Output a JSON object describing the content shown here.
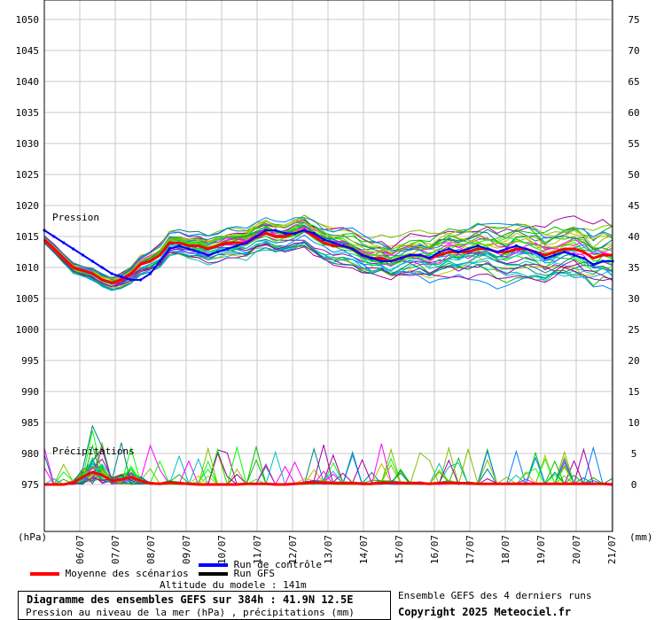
{
  "chart_data": {
    "type": "line",
    "title": "Diagramme des ensembles GEFS sur 384h : 41.9N 12.5E",
    "subtitle": "Pression au niveau de la mer (hPa) , précipitations (mm)",
    "left_axis": {
      "label": "(hPa)",
      "ticks": [
        1050,
        1045,
        1040,
        1035,
        1030,
        1025,
        1020,
        1015,
        1010,
        1005,
        1000,
        995,
        990,
        985,
        980,
        975
      ],
      "ylim": [
        967,
        1053
      ]
    },
    "right_axis": {
      "label": "(mm)",
      "ticks": [
        75,
        70,
        65,
        60,
        55,
        50,
        45,
        40,
        35,
        30,
        25,
        20,
        15,
        10,
        5,
        0
      ],
      "ylim": [
        0,
        75
      ]
    },
    "x_ticks": [
      "06/07",
      "07/07",
      "08/07",
      "09/07",
      "10/07",
      "11/07",
      "12/07",
      "13/07",
      "14/07",
      "15/07",
      "16/07",
      "17/07",
      "18/07",
      "19/07",
      "20/07",
      "21/07"
    ],
    "grid": true,
    "labels": {
      "pressure": "Pression",
      "precip": "Précipitations"
    },
    "series": [
      {
        "name": "Moyenne des scénarios",
        "color": "#ff0000",
        "kind": "pressure",
        "values": [
          1014.5,
          1013,
          1011.5,
          1010,
          1009.5,
          1009,
          1008,
          1007.5,
          1008,
          1009,
          1010.5,
          1011,
          1012,
          1014,
          1014,
          1013.5,
          1013.5,
          1013,
          1013.5,
          1014,
          1014,
          1014,
          1015,
          1015.5,
          1015,
          1015,
          1015.5,
          1016,
          1015,
          1014,
          1013.5,
          1013.5,
          1013,
          1012,
          1011.5,
          1011.5,
          1011,
          1011.5,
          1012,
          1012,
          1011.5,
          1012,
          1012.5,
          1012.5,
          1012.5,
          1013,
          1013,
          1012.5,
          1012.5,
          1013,
          1013,
          1012.5,
          1012,
          1012.5,
          1013,
          1013,
          1012.5,
          1011.5,
          1012,
          1012
        ]
      },
      {
        "name": "Run de contrôle",
        "color": "#0000ff",
        "kind": "pressure",
        "values": [
          1016,
          1015,
          1014,
          1013,
          1012,
          1011,
          1010,
          1009,
          1008.5,
          1008,
          1008,
          1009,
          1011,
          1013,
          1013.5,
          1013,
          1012.5,
          1012,
          1012.5,
          1013,
          1013.5,
          1014,
          1015,
          1016,
          1016,
          1015.5,
          1015.5,
          1016,
          1015.5,
          1014.5,
          1014,
          1013.5,
          1013,
          1012,
          1011.5,
          1011,
          1011,
          1011.5,
          1012,
          1012,
          1011.5,
          1012.5,
          1013,
          1012.5,
          1013,
          1013.5,
          1013,
          1012.5,
          1013,
          1013.5,
          1013,
          1012.5,
          1011.5,
          1012,
          1012.5,
          1012,
          1011.5,
          1010.5,
          1011,
          1011
        ]
      },
      {
        "name": "Run GFS",
        "color": "#000000",
        "kind": "pressure",
        "values": []
      },
      {
        "name": "Moyenne des scénarios",
        "color": "#ff0000",
        "kind": "precip",
        "values": [
          0,
          0,
          0,
          0.3,
          1.2,
          2,
          1.5,
          0.6,
          0.8,
          1.2,
          0.6,
          0.2,
          0.1,
          0.3,
          0.2,
          0.1,
          0,
          0,
          0,
          0,
          0,
          0.1,
          0.1,
          0.1,
          0,
          0,
          0.1,
          0.2,
          0.3,
          0.3,
          0.2,
          0.2,
          0.2,
          0.1,
          0.1,
          0.3,
          0.3,
          0.2,
          0.2,
          0.2,
          0.1,
          0.2,
          0.3,
          0.2,
          0.2,
          0.1,
          0.1,
          0.1,
          0.1,
          0.1,
          0.1,
          0.1,
          0.1,
          0.1,
          0.1,
          0.1,
          0.1,
          0.1,
          0.1,
          0
        ]
      }
    ]
  },
  "legend": {
    "control": "Run de contrôle",
    "gfs": "Run GFS",
    "mean": "Moyenne des scénarios"
  },
  "altitude": "Altitude du modele : 141m",
  "title_box": {
    "title": "Diagramme des ensembles GEFS sur 384h : 41.9N 12.5E",
    "subtitle": "Pression au niveau de la mer (hPa) , précipitations (mm)"
  },
  "right_box": {
    "line1": "Ensemble GEFS des 4 derniers runs",
    "line2": "Copyright 2025 Meteociel.fr"
  },
  "colors": {
    "ensemble": [
      "#ff00ff",
      "#00c000",
      "#c0c000",
      "#00c0c0",
      "#0080ff",
      "#a000a0",
      "#80c000",
      "#008080",
      "#00ff00"
    ],
    "grid": "#c8c8c8"
  }
}
